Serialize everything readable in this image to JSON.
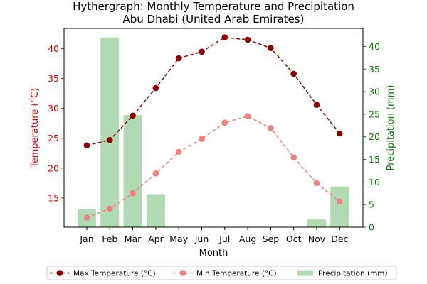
{
  "chart_data": {
    "type": "line",
    "title": "Hythergraph: Monthly Temperature and Precipitation",
    "subtitle": "Abu Dhabi (United Arab Emirates)",
    "xlabel": "Month",
    "ylabel_left": "Temperature (°C)",
    "ylabel_right": "Precipitation (mm)",
    "categories": [
      "Jan",
      "Feb",
      "Mar",
      "Apr",
      "May",
      "Jun",
      "Jul",
      "Aug",
      "Sep",
      "Oct",
      "Nov",
      "Dec"
    ],
    "ylim_left": [
      10.1,
      43.4
    ],
    "ylim_right": [
      0,
      44
    ],
    "yticks_left": [
      "15",
      "20",
      "25",
      "30",
      "35",
      "40"
    ],
    "yticks_right": [
      "0",
      "5",
      "10",
      "15",
      "20",
      "25",
      "30",
      "35",
      "40"
    ],
    "series": [
      {
        "name": "Max Temperature (°C)",
        "kind": "line",
        "axis": "left",
        "color": "#8b0000",
        "style": "dashed",
        "values": [
          23.8,
          24.7,
          28.8,
          33.4,
          38.4,
          39.5,
          41.9,
          41.5,
          40.1,
          35.8,
          30.6,
          25.8
        ]
      },
      {
        "name": "Min Temperature (°C)",
        "kind": "line",
        "axis": "left",
        "color": "#f08080",
        "style": "dashed",
        "values": [
          11.7,
          13.2,
          15.8,
          19.1,
          22.7,
          24.9,
          27.6,
          28.7,
          26.7,
          21.8,
          17.5,
          14.4
        ]
      },
      {
        "name": "Precipitation (mm)",
        "kind": "bar",
        "axis": "right",
        "color": "#b2dab2",
        "values": [
          4.0,
          42.0,
          24.8,
          7.3,
          0.0,
          0.0,
          0.0,
          0.1,
          0.0,
          0.0,
          1.7,
          9.0
        ]
      }
    ],
    "legend_position": "bottom-center",
    "grid": false
  }
}
